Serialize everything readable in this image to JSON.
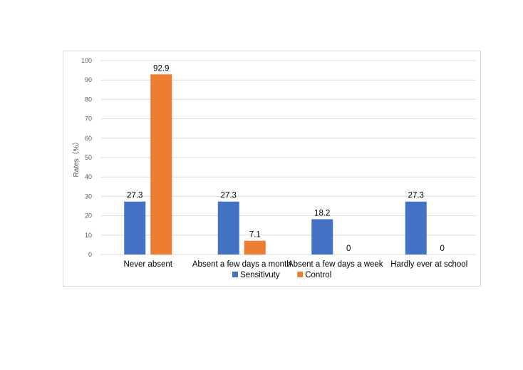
{
  "chart_data": {
    "type": "bar",
    "categories": [
      "Never absent",
      "Absent a few days a month",
      "Absent a few days a week",
      "Hardly ever at school"
    ],
    "series": [
      {
        "name": "Sensitivuty",
        "values": [
          27.3,
          27.3,
          18.2,
          27.3
        ],
        "color": "#4472c4"
      },
      {
        "name": "Control",
        "values": [
          92.9,
          7.1,
          0,
          0
        ],
        "color": "#ed7d31"
      }
    ],
    "title": "",
    "xlabel": "",
    "ylabel": "Rates（%）",
    "ylim": [
      0,
      100
    ],
    "yticks": [
      0,
      10,
      20,
      30,
      40,
      50,
      60,
      70,
      80,
      90,
      100
    ],
    "grid": true,
    "legend_position": "bottom"
  }
}
